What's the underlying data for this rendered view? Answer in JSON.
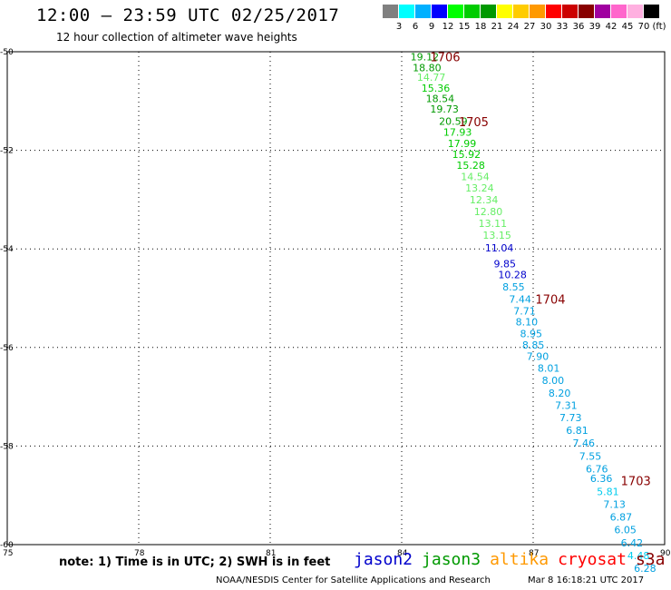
{
  "header": {
    "title": "12:00 – 23:59 UTC 02/25/2017",
    "subtitle": "12 hour collection of altimeter wave heights"
  },
  "legend": {
    "colors": [
      "#808080",
      "#00ffff",
      "#00b0ff",
      "#0000ff",
      "#00ff00",
      "#00cc00",
      "#009900",
      "#ffff00",
      "#ffcc00",
      "#ff9900",
      "#ff0000",
      "#cc0000",
      "#880000",
      "#a000a0",
      "#ff66cc",
      "#ffb0e0",
      "#000000"
    ],
    "labels": [
      "3",
      "6",
      "9",
      "12",
      "15",
      "18",
      "21",
      "24",
      "27",
      "30",
      "33",
      "36",
      "39",
      "42",
      "45",
      "70"
    ],
    "unit": "(ft)"
  },
  "chart_data": {
    "type": "scatter",
    "title": "12:00 – 23:59 UTC 02/25/2017",
    "subtitle": "12 hour collection of altimeter wave heights",
    "xlim": [
      75,
      90
    ],
    "ylim": [
      -60,
      -50
    ],
    "x_ticks": [
      "75",
      "78",
      "81",
      "84",
      "87",
      "90"
    ],
    "y_ticks": [
      "-50",
      "-52",
      "-54",
      "-56",
      "-58",
      "-60"
    ],
    "grid": true,
    "series": [
      {
        "name": "altimeter SWH",
        "points": [
          {
            "x": 84.2,
            "y": -50.1,
            "label": "19.12",
            "color": "#009900"
          },
          {
            "x": 84.25,
            "y": -50.32,
            "label": "18.80",
            "color": "#009900"
          },
          {
            "x": 84.35,
            "y": -50.52,
            "label": "14.77",
            "color": "#66ee66"
          },
          {
            "x": 84.45,
            "y": -50.74,
            "label": "15.36",
            "color": "#00cc00"
          },
          {
            "x": 84.55,
            "y": -50.95,
            "label": "18.54",
            "color": "#009900"
          },
          {
            "x": 84.65,
            "y": -51.16,
            "label": "19.73",
            "color": "#009900"
          },
          {
            "x": 84.85,
            "y": -51.41,
            "label": "20.59",
            "color": "#009900"
          },
          {
            "x": 84.95,
            "y": -51.63,
            "label": "17.93",
            "color": "#00cc00"
          },
          {
            "x": 85.05,
            "y": -51.86,
            "label": "17.99",
            "color": "#00cc00"
          },
          {
            "x": 85.15,
            "y": -52.08,
            "label": "15.92",
            "color": "#00cc00"
          },
          {
            "x": 85.25,
            "y": -52.3,
            "label": "15.28",
            "color": "#00cc00"
          },
          {
            "x": 85.35,
            "y": -52.53,
            "label": "14.54",
            "color": "#66ee66"
          },
          {
            "x": 85.45,
            "y": -52.76,
            "label": "13.24",
            "color": "#66ee66"
          },
          {
            "x": 85.55,
            "y": -53.0,
            "label": "12.34",
            "color": "#66ee66"
          },
          {
            "x": 85.65,
            "y": -53.24,
            "label": "12.80",
            "color": "#66ee66"
          },
          {
            "x": 85.75,
            "y": -53.48,
            "label": "13.11",
            "color": "#66ee66"
          },
          {
            "x": 85.85,
            "y": -53.72,
            "label": "13.15",
            "color": "#66ee66"
          },
          {
            "x": 85.9,
            "y": -53.98,
            "label": "11.04",
            "color": "#0000cc"
          },
          {
            "x": 86.1,
            "y": -54.3,
            "label": "9.85",
            "color": "#0000cc"
          },
          {
            "x": 86.2,
            "y": -54.52,
            "label": "10.28",
            "color": "#0000cc"
          },
          {
            "x": 86.3,
            "y": -54.77,
            "label": "8.55",
            "color": "#00a0e0"
          },
          {
            "x": 86.45,
            "y": -55.02,
            "label": "7.44",
            "color": "#00a0e0"
          },
          {
            "x": 86.55,
            "y": -55.26,
            "label": "7.71",
            "color": "#00a0e0"
          },
          {
            "x": 86.6,
            "y": -55.48,
            "label": "8.10",
            "color": "#00a0e0"
          },
          {
            "x": 86.7,
            "y": -55.72,
            "label": "8.95",
            "color": "#00a0e0"
          },
          {
            "x": 86.75,
            "y": -55.95,
            "label": "8.85",
            "color": "#00a0e0"
          },
          {
            "x": 86.85,
            "y": -56.18,
            "label": "7.90",
            "color": "#00a0e0"
          },
          {
            "x": 87.1,
            "y": -56.42,
            "label": "8.01",
            "color": "#00a0e0"
          },
          {
            "x": 87.2,
            "y": -56.67,
            "label": "8.00",
            "color": "#00a0e0"
          },
          {
            "x": 87.35,
            "y": -56.92,
            "label": "8.20",
            "color": "#00a0e0"
          },
          {
            "x": 87.5,
            "y": -57.17,
            "label": "7.31",
            "color": "#00a0e0"
          },
          {
            "x": 87.6,
            "y": -57.42,
            "label": "7.73",
            "color": "#00a0e0"
          },
          {
            "x": 87.75,
            "y": -57.68,
            "label": "6.81",
            "color": "#00a0e0"
          },
          {
            "x": 87.9,
            "y": -57.94,
            "label": "7.46",
            "color": "#00a0e0"
          },
          {
            "x": 88.05,
            "y": -58.2,
            "label": "7.55",
            "color": "#00a0e0"
          },
          {
            "x": 88.2,
            "y": -58.46,
            "label": "6.76",
            "color": "#00a0e0"
          },
          {
            "x": 88.3,
            "y": -58.66,
            "label": "6.36",
            "color": "#00a0e0"
          },
          {
            "x": 88.45,
            "y": -58.92,
            "label": "5.81",
            "color": "#00ccee"
          },
          {
            "x": 88.6,
            "y": -59.18,
            "label": "7.13",
            "color": "#00a0e0"
          },
          {
            "x": 88.75,
            "y": -59.44,
            "label": "6.87",
            "color": "#00a0e0"
          },
          {
            "x": 88.85,
            "y": -59.7,
            "label": "6.05",
            "color": "#00a0e0"
          },
          {
            "x": 89.0,
            "y": -59.96,
            "label": "6.42",
            "color": "#00a0e0"
          },
          {
            "x": 89.15,
            "y": -60.22,
            "label": "4.48",
            "color": "#00ccee"
          },
          {
            "x": 89.3,
            "y": -60.48,
            "label": "6.28",
            "color": "#00a0e0"
          }
        ]
      }
    ],
    "annotations": [
      {
        "text": "1706",
        "x": 84.65,
        "y": -50.1,
        "color": "#880000"
      },
      {
        "text": "1705",
        "x": 85.3,
        "y": -51.42,
        "color": "#880000"
      },
      {
        "text": "1704",
        "x": 87.05,
        "y": -55.02,
        "color": "#880000"
      },
      {
        "text": "1703",
        "x": 89.0,
        "y": -58.7,
        "color": "#880000"
      }
    ]
  },
  "note": "note: 1) Time is in UTC; 2) SWH is in feet",
  "missions": [
    {
      "name": "jason2",
      "color": "#0000cc"
    },
    {
      "name": "jason3",
      "color": "#009900"
    },
    {
      "name": "altika",
      "color": "#ff9900"
    },
    {
      "name": "cryosat",
      "color": "#ff0000"
    },
    {
      "name": "s3a",
      "color": "#880000"
    }
  ],
  "footer": {
    "credit": "NOAA/NESDIS Center for Satellite Applications and Research",
    "timestamp": "Mar  8 16:18:21 UTC 2017"
  }
}
